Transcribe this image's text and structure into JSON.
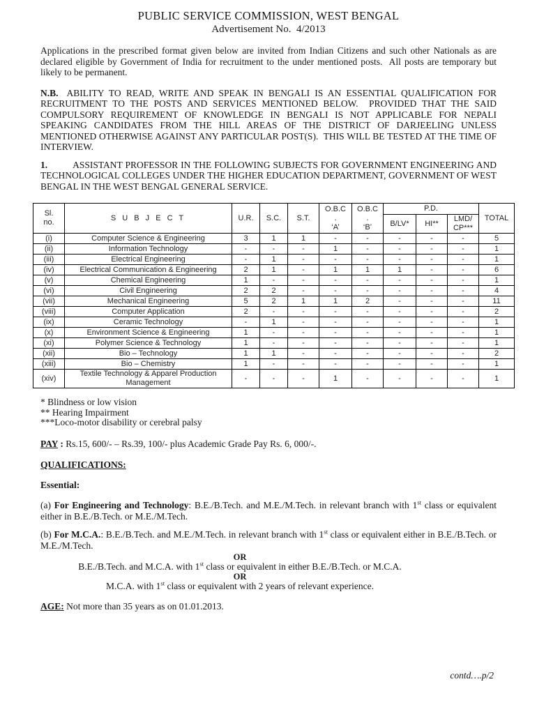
{
  "header": {
    "title": "PUBLIC SERVICE COMMISSION, WEST BENGAL",
    "subtitle": "Advertisement No.  4/2013"
  },
  "paragraphs": {
    "intro": "Applications in the prescribed format given below are invited from Indian Citizens and such other Nationals as are declared eligible by Government of India for recruitment to the under mentioned posts.  All posts are temporary but likely to be permanent.",
    "nb": [
      {
        "t": "N.B.",
        "b": true
      },
      {
        "sp": 12
      },
      {
        "t": "ABILITY TO READ, WRITE AND SPEAK IN BENGALI IS AN ESSENTIAL QUALIFICATION FOR RECRUITMENT TO THE POSTS AND SERVICES MENTIONED BELOW.  PROVIDED THAT THE SAID COMPULSORY REQUIREMENT OF KNOWLEDGE IN BENGALI IS NOT APPLICABLE FOR NEPALI SPEAKING CANDIDATES FROM THE HILL AREAS OF THE DISTRICT OF DARJEELING UNLESS MENTIONED OTHERWISE AGAINST ANY PARTICULAR POST(S).  THIS WILL BE TESTED AT THE TIME OF INTERVIEW."
      }
    ],
    "item1": [
      {
        "t": "1.",
        "b": true
      },
      {
        "sp": 36
      },
      {
        "t": "ASSISTANT PROFESSOR IN THE FOLLOWING SUBJECTS FOR GOVERNMENT ENGINEERING AND TECHNOLOGICAL COLLEGES UNDER THE HIGHER EDUCATION DEPARTMENT, GOVERNMENT OF WEST BENGAL IN THE WEST BENGAL GENERAL SERVICE."
      }
    ]
  },
  "table": {
    "headers": {
      "sl": "Sl.\nno.",
      "subject": "S U B J E C T",
      "ur": "U.R.",
      "sc": "S.C.",
      "st": "S.T.",
      "obc_a": "O.B.C\n.\n‘A’",
      "obc_b": "O.B.C\n.\n‘B’",
      "pd": "P.D.",
      "blv": "B/LV*",
      "hi": "HI**",
      "lmd": "LMD/\nCP***",
      "total": "TOTAL"
    },
    "rows": [
      {
        "sl": "(i)",
        "subject": "Computer Science & Engineering",
        "values": [
          "3",
          "1",
          "1",
          "-",
          "-",
          "-",
          "-",
          "-",
          "5"
        ]
      },
      {
        "sl": "(ii)",
        "subject": "Information Technology",
        "values": [
          "-",
          "-",
          "-",
          "1",
          "-",
          "-",
          "-",
          "-",
          "1"
        ]
      },
      {
        "sl": "(iii)",
        "subject": "Electrical Engineering",
        "values": [
          "-",
          "1",
          "-",
          "-",
          "-",
          "-",
          "-",
          "-",
          "1"
        ]
      },
      {
        "sl": "(iv)",
        "subject": "Electrical Communication & Engineering",
        "values": [
          "2",
          "1",
          "-",
          "1",
          "1",
          "1",
          "-",
          "-",
          "6"
        ]
      },
      {
        "sl": "(v)",
        "subject": "Chemical Engineering",
        "values": [
          "1",
          "-",
          "-",
          "-",
          "-",
          "-",
          "-",
          "-",
          "1"
        ]
      },
      {
        "sl": "(vi)",
        "subject": "Civil Engineering",
        "values": [
          "2",
          "2",
          "-",
          "-",
          "-",
          "-",
          "-",
          "-",
          "4"
        ]
      },
      {
        "sl": "(vii)",
        "subject": "Mechanical Engineering",
        "values": [
          "5",
          "2",
          "1",
          "1",
          "2",
          "-",
          "-",
          "-",
          "11"
        ]
      },
      {
        "sl": "(viii)",
        "subject": "Computer Application",
        "values": [
          "2",
          "-",
          "-",
          "-",
          "-",
          "-",
          "-",
          "-",
          "2"
        ]
      },
      {
        "sl": "(ix)",
        "subject": "Ceramic Technology",
        "values": [
          "-",
          "1",
          "-",
          "-",
          "-",
          "-",
          "-",
          "-",
          "1"
        ]
      },
      {
        "sl": "(x)",
        "subject": "Environment Science & Engineering",
        "values": [
          "1",
          "-",
          "-",
          "-",
          "-",
          "-",
          "-",
          "-",
          "1"
        ]
      },
      {
        "sl": "(xi)",
        "subject": "Polymer Science & Technology",
        "values": [
          "1",
          "-",
          "-",
          "-",
          "-",
          "-",
          "-",
          "-",
          "1"
        ]
      },
      {
        "sl": "(xii)",
        "subject": "Bio – Technology",
        "values": [
          "1",
          "1",
          "-",
          "-",
          "-",
          "-",
          "-",
          "-",
          "2"
        ]
      },
      {
        "sl": "(xiii)",
        "subject": "Bio – Chemistry",
        "values": [
          "1",
          "-",
          "-",
          "-",
          "-",
          "-",
          "-",
          "-",
          "1"
        ]
      },
      {
        "sl": "(xiv)",
        "subject": "Textile Technology & Apparel Production Management",
        "values": [
          "-",
          "-",
          "-",
          "1",
          "-",
          "-",
          "-",
          "-",
          "1"
        ]
      }
    ]
  },
  "footnotes": {
    "line1": "* Blindness or low vision",
    "line2": "** Hearing Impairment",
    "line3": "***Loco-motor disability or cerebral palsy"
  },
  "pay": [
    {
      "t": "PAY",
      "b": true,
      "u": true
    },
    {
      "t": " : ",
      "b": true
    },
    {
      "t": "Rs.15, 600/- – Rs.39, 100/- plus Academic Grade Pay Rs. 6, 000/-."
    }
  ],
  "qualifications": {
    "heading": [
      {
        "t": "QUALIFICATIONS:",
        "b": true,
        "u": true
      }
    ],
    "essential": [
      {
        "t": "Essential:",
        "b": true
      }
    ],
    "para_a": [
      {
        "t": "(a) "
      },
      {
        "t": "For Engineering and Technology",
        "b": true
      },
      {
        "t": ": B.E./B.Tech. and M.E./M.Tech. in relevant branch with 1"
      },
      {
        "t": "st",
        "sup": true
      },
      {
        "t": " class or equivalent either in B.E./B.Tech. or M.E./M.Tech."
      }
    ],
    "para_b": [
      {
        "t": "(b) "
      },
      {
        "t": "For M.C.A.",
        "b": true
      },
      {
        "t": ": B.E./B.Tech. and M.E./M.Tech. in relevant branch with 1"
      },
      {
        "t": "st",
        "sup": true
      },
      {
        "t": " class or equivalent either in B.E./B.Tech. or M.E./M.Tech."
      }
    ],
    "or_label": "OR",
    "or1": [
      {
        "t": "B.E./B.Tech. and M.C.A. with 1"
      },
      {
        "t": "st",
        "sup": true
      },
      {
        "t": " class or equivalent in either B.E./B.Tech. or M.C.A."
      }
    ],
    "or2": [
      {
        "t": "M.C.A. with 1"
      },
      {
        "t": "st",
        "sup": true
      },
      {
        "t": " class or equivalent with 2 years of relevant experience."
      }
    ]
  },
  "age": [
    {
      "t": "AGE:",
      "b": true,
      "u": true
    },
    {
      "t": " Not more than 35 years as on 01.01.2013."
    }
  ],
  "footer": {
    "contd": "contd….p/2"
  }
}
